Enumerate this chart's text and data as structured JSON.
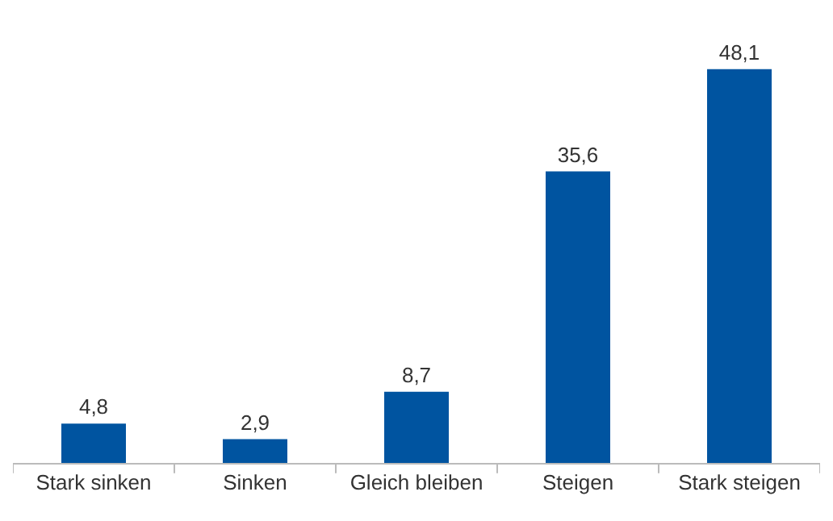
{
  "chart_data": {
    "type": "bar",
    "categories": [
      "Stark sinken",
      "Sinken",
      "Gleich bleiben",
      "Steigen",
      "Stark steigen"
    ],
    "values": [
      4.8,
      2.9,
      8.7,
      35.6,
      48.1
    ],
    "value_labels": [
      "4,8",
      "2,9",
      "8,7",
      "35,6",
      "48,1"
    ],
    "color": "#0054a0"
  }
}
